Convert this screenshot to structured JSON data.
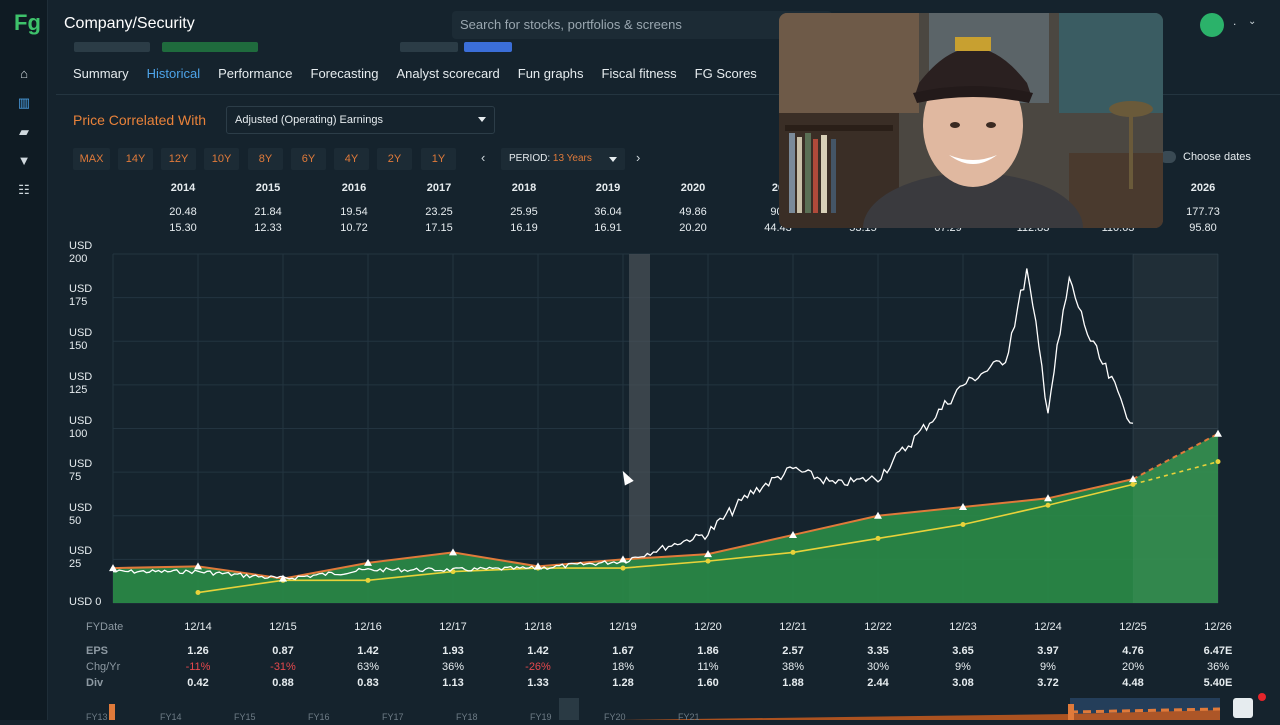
{
  "app": {
    "logo": "Fg",
    "title": "Company/Security",
    "search_placeholder": "Search for stocks, portfolios & screens",
    "user_label": "."
  },
  "tabs": [
    "Summary",
    "Historical",
    "Performance",
    "Forecasting",
    "Analyst scorecard",
    "Fun graphs",
    "Fiscal fitness",
    "FG Scores"
  ],
  "active_tab": "Historical",
  "correlated": {
    "label": "Price Correlated With",
    "value": "Adjusted (Operating) Earnings"
  },
  "period_buttons": [
    "MAX",
    "14Y",
    "12Y",
    "10Y",
    "8Y",
    "6Y",
    "4Y",
    "2Y",
    "1Y"
  ],
  "period": {
    "label": "PERIOD:",
    "value": "13 Years"
  },
  "choose_dates": "Choose dates",
  "year_header": {
    "years": [
      "2014",
      "2015",
      "2016",
      "2017",
      "2018",
      "2019",
      "2020",
      "20",
      "",
      "",
      "",
      "",
      "2026"
    ],
    "highs": [
      "20.48",
      "21.84",
      "19.54",
      "23.25",
      "25.95",
      "36.04",
      "49.86",
      "90.",
      "",
      "",
      "",
      "",
      "177.73"
    ],
    "lows": [
      "15.30",
      "12.33",
      "10.72",
      "17.15",
      "16.19",
      "16.91",
      "20.20",
      "44.43",
      "53.15",
      "67.29",
      "112.83",
      "110.63",
      "95.80"
    ]
  },
  "y_axis_labels": [
    {
      "cur": "USD",
      "val": "200"
    },
    {
      "cur": "USD",
      "val": "175"
    },
    {
      "cur": "USD",
      "val": "150"
    },
    {
      "cur": "USD",
      "val": "125"
    },
    {
      "cur": "USD",
      "val": "100"
    },
    {
      "cur": "USD",
      "val": "75"
    },
    {
      "cur": "USD",
      "val": "50"
    },
    {
      "cur": "USD",
      "val": "25"
    },
    {
      "cur": "USD",
      "val": "0"
    }
  ],
  "fiscal": {
    "fy_label": "FYDate",
    "dates": [
      "12/14",
      "12/15",
      "12/16",
      "12/17",
      "12/18",
      "12/19",
      "12/20",
      "12/21",
      "12/22",
      "12/23",
      "12/24",
      "12/25",
      "12/26"
    ],
    "eps_label": "EPS",
    "eps": [
      "1.26",
      "0.87",
      "1.42",
      "1.93",
      "1.42",
      "1.67",
      "1.86",
      "2.57",
      "3.35",
      "3.65",
      "3.97",
      "4.76",
      "6.47E"
    ],
    "chg_label": "Chg/Yr",
    "chg": [
      "-11%",
      "-31%",
      "63%",
      "36%",
      "-26%",
      "18%",
      "11%",
      "38%",
      "30%",
      "9%",
      "9%",
      "20%",
      "36%"
    ],
    "div_label": "Div",
    "div": [
      "0.42",
      "0.88",
      "0.83",
      "1.13",
      "1.33",
      "1.28",
      "1.60",
      "1.88",
      "2.44",
      "3.08",
      "3.72",
      "4.48",
      "5.40E"
    ]
  },
  "nav_labels": [
    "FY13",
    "FY14",
    "FY15",
    "FY16",
    "FY17",
    "FY18",
    "FY19",
    "FY20",
    "FY21"
  ],
  "colors": {
    "accent": "#4da3e8",
    "orange": "#e9823a",
    "green_area": "#2a8a47",
    "price_line": "#ffffff",
    "yellow_line": "#e8d23a",
    "negative": "#e5484d"
  },
  "chart_data": {
    "type": "line",
    "ylim": [
      0,
      200
    ],
    "x": [
      "12/14",
      "12/15",
      "12/16",
      "12/17",
      "12/18",
      "12/19",
      "12/20",
      "12/21",
      "12/22",
      "12/23",
      "12/24",
      "12/25",
      "12/26"
    ],
    "series": [
      {
        "values": [
          21,
          14,
          23,
          29,
          21,
          25,
          28,
          39,
          50,
          55,
          60,
          71,
          97
        ]
      },
      {
        "values": [
          6,
          13,
          13,
          18,
          20,
          20,
          24,
          29,
          37,
          45,
          56,
          68,
          81
        ]
      }
    ],
    "price_series": {
      "x": [
        "12/13",
        "12/14",
        "12/15",
        "12/16",
        "12/17",
        "12/18",
        "12/19",
        "12/20",
        "6/21",
        "12/21",
        "6/22",
        "12/22",
        "6/23",
        "12/23",
        "6/24",
        "9/24",
        "12/24",
        "3/25",
        "6/25",
        "12/25"
      ],
      "values": [
        18,
        18,
        14,
        19,
        19,
        20,
        24,
        40,
        63,
        77,
        68,
        72,
        98,
        125,
        140,
        190,
        112,
        185,
        150,
        103
      ]
    }
  }
}
